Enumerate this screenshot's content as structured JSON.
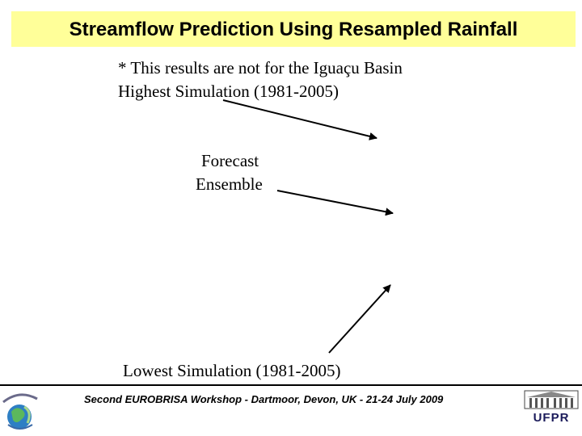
{
  "slide": {
    "title": "Streamflow Prediction Using Resampled Rainfall",
    "note_line": "* This results are not for the Iguaçu Basin",
    "highest_label": "Highest Simulation (1981-2005)",
    "forecast_label": "Forecast",
    "ensemble_label": "Ensemble",
    "lowest_label": "Lowest Simulation (1981-2005)",
    "title_bg_color": "#ffff99"
  },
  "footer": {
    "workshop_text": "Second EUROBRISA Workshop - Dartmoor, Devon, UK - 21-24 July 2009",
    "left_logo_icon": "eurobrisa-logo-icon",
    "right_logo_text": "UFPR"
  }
}
